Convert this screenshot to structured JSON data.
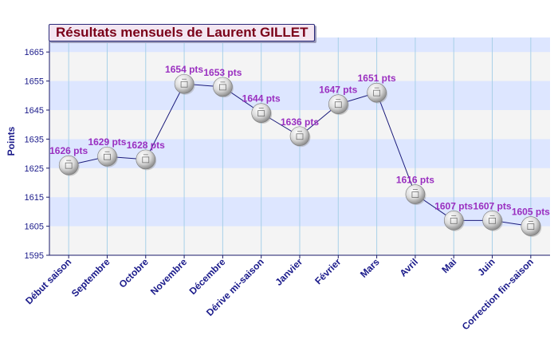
{
  "chart_data": {
    "type": "line",
    "title": "Résultats mensuels de Laurent GILLET",
    "xlabel": "",
    "ylabel": "Points",
    "categories": [
      "Début saison",
      "Septembre",
      "Octobre",
      "Novembre",
      "Décembre",
      "Dérive mi-saison",
      "Janvier",
      "Février",
      "Mars",
      "Avril",
      "Mai",
      "Juin",
      "Correction fin-saison"
    ],
    "values": [
      1626,
      1629,
      1628,
      1654,
      1653,
      1644,
      1636,
      1647,
      1651,
      1616,
      1607,
      1607,
      1605
    ],
    "data_labels": [
      "1626 pts",
      "1629 pts",
      "1628 pts",
      "1654 pts",
      "1653 pts",
      "1644 pts",
      "1636 pts",
      "1647 pts",
      "1651 pts",
      "1616 pts",
      "1607 pts",
      "1607 pts",
      "1605 pts"
    ],
    "ylim": [
      1595,
      1670
    ],
    "yticks": [
      1595,
      1605,
      1615,
      1625,
      1635,
      1645,
      1655,
      1665
    ],
    "grid": true,
    "colors": {
      "line": "#1a1a7a",
      "label": "#9a2fc0",
      "band_light": "#f4f4f4",
      "band_blue": "#dde6ff",
      "vgrid": "#a8d0e8",
      "axis_text": "#1a1a8a",
      "title_text": "#7a0018",
      "title_bg": "#f3e6f1"
    },
    "marker_icon": "ping-pong-ball-icon"
  }
}
